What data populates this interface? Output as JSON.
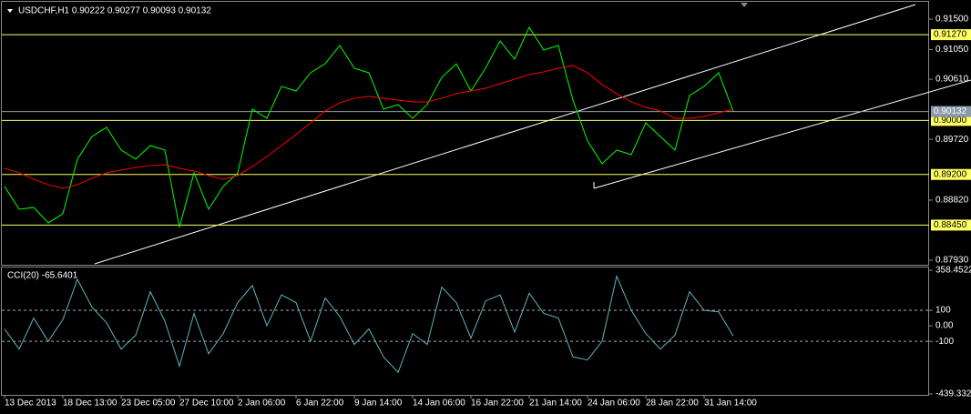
{
  "chart_data": [
    {
      "type": "line",
      "title": "USDCHF,H1  0.90222 0.90277 0.90093 0.90132",
      "ylim": [
        0.87876,
        0.91716
      ],
      "yticks": [
        {
          "value": 0.915,
          "label": "0.91500"
        },
        {
          "value": 0.9105,
          "label": "0.91050"
        },
        {
          "value": 0.9061,
          "label": "0.90610"
        },
        {
          "value": 0.8972,
          "label": "0.89720"
        },
        {
          "value": 0.8882,
          "label": "0.88820"
        },
        {
          "value": 0.8793,
          "label": "0.87930"
        }
      ],
      "hlines": [
        {
          "value": 0.9127,
          "label": "0.91270",
          "color": "#ffff66"
        },
        {
          "value": 0.9,
          "label": "0.90000",
          "color": "#ffff66"
        },
        {
          "value": 0.892,
          "label": "0.89200",
          "color": "#ffff66"
        },
        {
          "value": 0.8845,
          "label": "0.88450",
          "color": "#ffff66"
        }
      ],
      "price_line": {
        "value": 0.90132,
        "color": "#8a9aaa"
      },
      "series": [
        {
          "color": "#00ff00",
          "values": [
            0.89022,
            0.88685,
            0.88712,
            0.88483,
            0.88618,
            0.89426,
            0.89763,
            0.89898,
            0.89561,
            0.89426,
            0.89628,
            0.89561,
            0.88416,
            0.89224,
            0.88685,
            0.89022,
            0.89224,
            0.90167,
            0.90032,
            0.90504,
            0.90436,
            0.90706,
            0.9084,
            0.9111,
            0.90773,
            0.90706,
            0.90167,
            0.90234,
            0.90032,
            0.90234,
            0.90638,
            0.9084,
            0.90436,
            0.90773,
            0.91177,
            0.90908,
            0.91379,
            0.91042,
            0.9111,
            0.90302,
            0.89696,
            0.89359,
            0.89561,
            0.89493,
            0.89965,
            0.89763,
            0.89561,
            0.90369,
            0.90504,
            0.90706,
            0.90132
          ]
        },
        {
          "color": "#ff0000",
          "values": [
            0.89291,
            0.89224,
            0.8913,
            0.89049,
            0.88995,
            0.89049,
            0.89143,
            0.89224,
            0.89264,
            0.89305,
            0.89332,
            0.89345,
            0.89291,
            0.89251,
            0.89184,
            0.8913,
            0.89184,
            0.89318,
            0.89466,
            0.89628,
            0.8979,
            0.89965,
            0.9014,
            0.90261,
            0.90329,
            0.90356,
            0.90329,
            0.90302,
            0.90275,
            0.90275,
            0.90329,
            0.90396,
            0.90436,
            0.90477,
            0.90544,
            0.90611,
            0.90679,
            0.90719,
            0.90773,
            0.90814,
            0.90706,
            0.90531,
            0.90396,
            0.90275,
            0.90194,
            0.9014,
            0.90032,
            0.90032,
            0.90059,
            0.90113,
            0.90167
          ]
        }
      ]
    },
    {
      "type": "line",
      "title": "CCI(20) -65.6401",
      "ylim": [
        -439.3325,
        358.4522
      ],
      "yticks": [
        358.4522,
        100,
        {
          "value": 0,
          "label": "0.00"
        },
        -100,
        -439.3325
      ],
      "levels": [
        100,
        -100
      ],
      "categories": [
        "13 Dec 2013",
        null,
        null,
        null,
        "18 Dec 13:00",
        null,
        null,
        null,
        "23 Dec 05:00",
        null,
        null,
        null,
        "27 Dec 10:00",
        null,
        null,
        null,
        "2 Jan 06:00",
        null,
        null,
        null,
        "6 Jan 22:00",
        null,
        null,
        null,
        "9 Jan 14:00",
        null,
        null,
        null,
        "14 Jan 06:00",
        null,
        null,
        null,
        "16 Jan 22:00",
        null,
        null,
        null,
        "21 Jan 14:00",
        null,
        null,
        null,
        "24 Jan 06:00",
        null,
        null,
        null,
        "28 Jan 22:00",
        null,
        null,
        null,
        "31 Jan 14:00",
        null,
        null
      ],
      "series": [
        {
          "color": "#5fb3c0",
          "values": [
            -20,
            -150,
            50,
            -100,
            40,
            300,
            120,
            20,
            -150,
            -60,
            220,
            30,
            -260,
            80,
            -180,
            -50,
            150,
            260,
            0,
            200,
            150,
            -100,
            180,
            60,
            -120,
            -20,
            -200,
            -300,
            -50,
            -120,
            250,
            150,
            -80,
            160,
            200,
            -40,
            210,
            80,
            50,
            -200,
            -220,
            -100,
            320,
            100,
            -50,
            -150,
            -60,
            220,
            100,
            90,
            -65.6401
          ]
        }
      ]
    }
  ]
}
